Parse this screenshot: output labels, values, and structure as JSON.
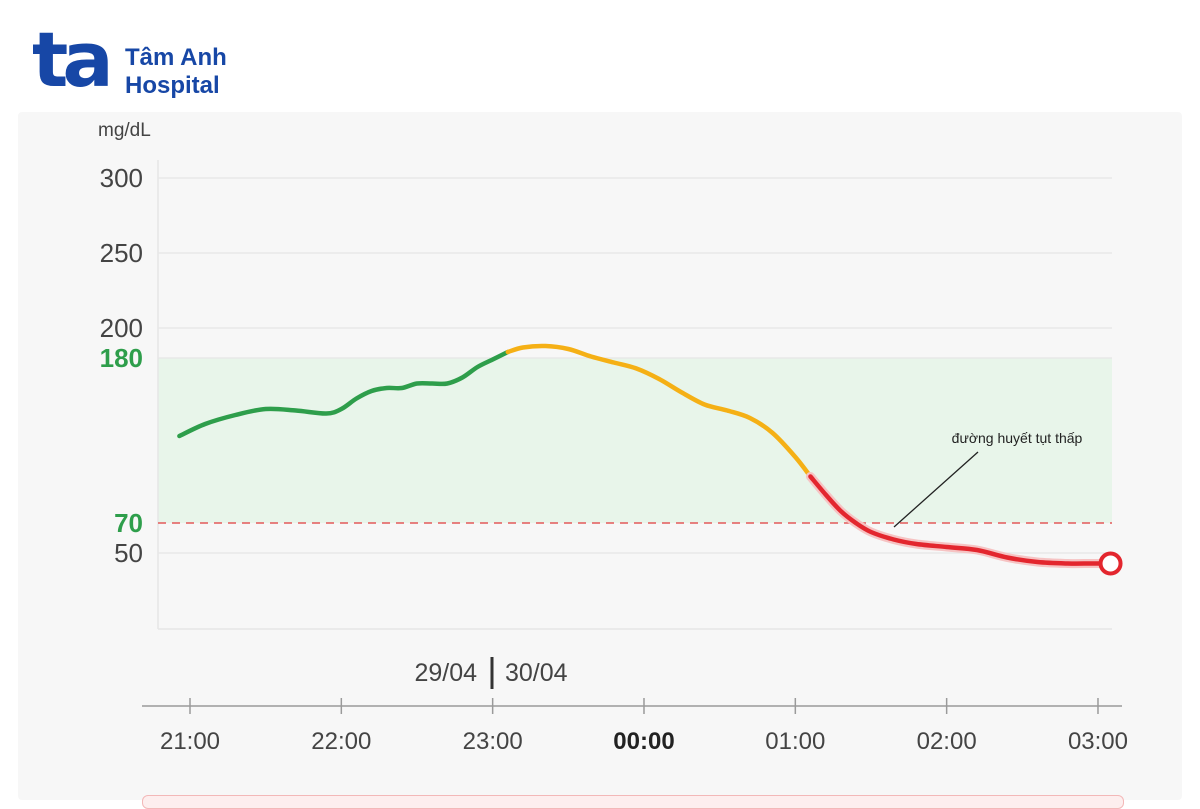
{
  "logo": {
    "mark": "ta",
    "line1": "Tâm Anh",
    "line2": "Hospital",
    "color": "#1747a6"
  },
  "chart_data": {
    "type": "line",
    "ylabel": "mg/dL",
    "ylim": [
      0,
      300
    ],
    "yticks": [
      {
        "value": 300,
        "label": "300",
        "highlight": false
      },
      {
        "value": 250,
        "label": "250",
        "highlight": false
      },
      {
        "value": 200,
        "label": "200",
        "highlight": false
      },
      {
        "value": 180,
        "label": "180",
        "highlight": true
      },
      {
        "value": 70,
        "label": "70",
        "highlight": true
      },
      {
        "value": 50,
        "label": "50",
        "highlight": false
      }
    ],
    "xlim": [
      20.85,
      27.1
    ],
    "xticks": [
      {
        "value": 21,
        "label": "21:00",
        "bold": false
      },
      {
        "value": 22,
        "label": "22:00",
        "bold": false
      },
      {
        "value": 23,
        "label": "23:00",
        "bold": false
      },
      {
        "value": 24,
        "label": "00:00",
        "bold": true
      },
      {
        "value": 25,
        "label": "01:00",
        "bold": false
      },
      {
        "value": 26,
        "label": "02:00",
        "bold": false
      },
      {
        "value": 27,
        "label": "03:00",
        "bold": false
      }
    ],
    "date_left": "29/04",
    "date_right": "30/04",
    "target_range": [
      70,
      180
    ],
    "low_threshold": 70,
    "annotation": "đường huyết tụt thấp",
    "colors": {
      "normal": "#2e9e4b",
      "elevated": "#f5b015",
      "low": "#e3262e",
      "target_band": "#e8f5ea",
      "threshold_line": "#e35a5a",
      "grid": "#e6e6e6",
      "highlight_label": "#2e9e4b"
    },
    "series": [
      {
        "points": [
          [
            20.93,
            128
          ],
          [
            21.1,
            136
          ],
          [
            21.3,
            142
          ],
          [
            21.5,
            146
          ],
          [
            21.7,
            145
          ],
          [
            21.9,
            143
          ],
          [
            22.0,
            146
          ],
          [
            22.1,
            153
          ],
          [
            22.2,
            158
          ],
          [
            22.3,
            160
          ],
          [
            22.4,
            160
          ],
          [
            22.5,
            163
          ],
          [
            22.6,
            163
          ],
          [
            22.7,
            163
          ],
          [
            22.8,
            167
          ],
          [
            22.9,
            174
          ],
          [
            23.0,
            179
          ],
          [
            23.1,
            184
          ],
          [
            23.2,
            187
          ],
          [
            23.35,
            188
          ],
          [
            23.5,
            186
          ],
          [
            23.65,
            181
          ],
          [
            23.8,
            177
          ],
          [
            23.95,
            173
          ],
          [
            24.1,
            166
          ],
          [
            24.25,
            157
          ],
          [
            24.4,
            149
          ],
          [
            24.55,
            145
          ],
          [
            24.7,
            140
          ],
          [
            24.85,
            130
          ],
          [
            25.0,
            114
          ],
          [
            25.1,
            101
          ],
          [
            25.2,
            89
          ],
          [
            25.3,
            78
          ],
          [
            25.4,
            70
          ],
          [
            25.5,
            64
          ],
          [
            25.65,
            59
          ],
          [
            25.8,
            56
          ],
          [
            26.0,
            54
          ],
          [
            26.2,
            52
          ],
          [
            26.4,
            47
          ],
          [
            26.6,
            44
          ],
          [
            26.8,
            43
          ],
          [
            26.95,
            43
          ],
          [
            27.05,
            43
          ]
        ],
        "segments": [
          {
            "level": "normal",
            "from": 20.93,
            "to": 23.1
          },
          {
            "level": "elevated",
            "from": 23.1,
            "to": 25.1
          },
          {
            "level": "low",
            "from": 25.1,
            "to": 27.05
          }
        ]
      }
    ]
  }
}
